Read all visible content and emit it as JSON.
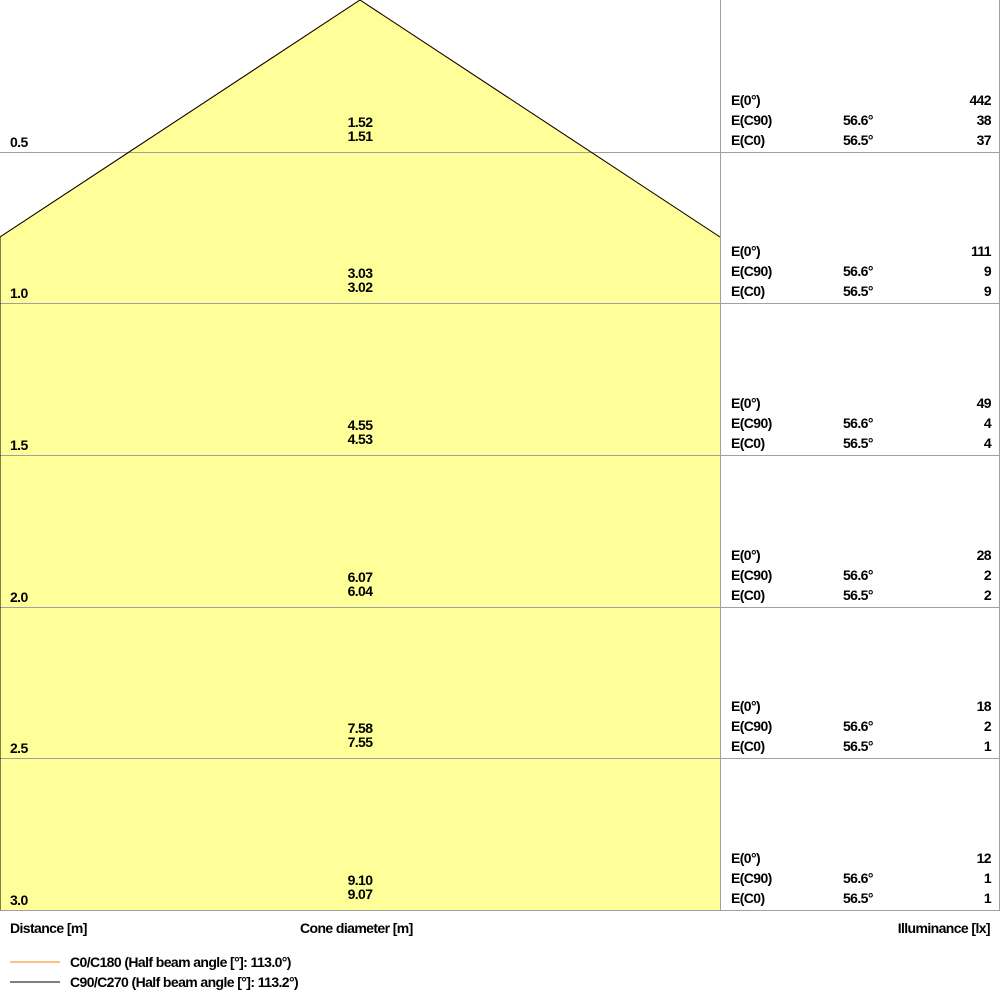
{
  "colors": {
    "cone_fill": "#FFFF99",
    "c0_line": "#FF8000",
    "c90_line": "#000000",
    "grid": "#A0A0A0"
  },
  "rows": [
    {
      "distance": "0.5",
      "d_c90": "1.52",
      "d_c0": "1.51",
      "e0": "442",
      "angle_c90": "56.6°",
      "e_c90": "38",
      "angle_c0": "56.5°",
      "e_c0": "37"
    },
    {
      "distance": "1.0",
      "d_c90": "3.03",
      "d_c0": "3.02",
      "e0": "111",
      "angle_c90": "56.6°",
      "e_c90": "9",
      "angle_c0": "56.5°",
      "e_c0": "9"
    },
    {
      "distance": "1.5",
      "d_c90": "4.55",
      "d_c0": "4.53",
      "e0": "49",
      "angle_c90": "56.6°",
      "e_c90": "4",
      "angle_c0": "56.5°",
      "e_c0": "4"
    },
    {
      "distance": "2.0",
      "d_c90": "6.07",
      "d_c0": "6.04",
      "e0": "28",
      "angle_c90": "56.6°",
      "e_c90": "2",
      "angle_c0": "56.5°",
      "e_c0": "2"
    },
    {
      "distance": "2.5",
      "d_c90": "7.58",
      "d_c0": "7.55",
      "e0": "18",
      "angle_c90": "56.6°",
      "e_c90": "2",
      "angle_c0": "56.5°",
      "e_c0": "1"
    },
    {
      "distance": "3.0",
      "d_c90": "9.10",
      "d_c0": "9.07",
      "e0": "12",
      "angle_c90": "56.6°",
      "e_c90": "1",
      "angle_c0": "56.5°",
      "e_c0": "1"
    }
  ],
  "labels": {
    "e0": "E(0°)",
    "e_c90": "E(C90)",
    "e_c0": "E(C0)"
  },
  "axis": {
    "distance": "Distance [m]",
    "cone": "Cone diameter [m]",
    "illuminance": "Illuminance [lx]"
  },
  "legend": [
    {
      "label": "C0/C180 (Half beam angle [°]: 113.0°)",
      "color": "#FF8000"
    },
    {
      "label": "C90/C270 (Half beam angle [°]: 113.2°)",
      "color": "#000000"
    }
  ]
}
